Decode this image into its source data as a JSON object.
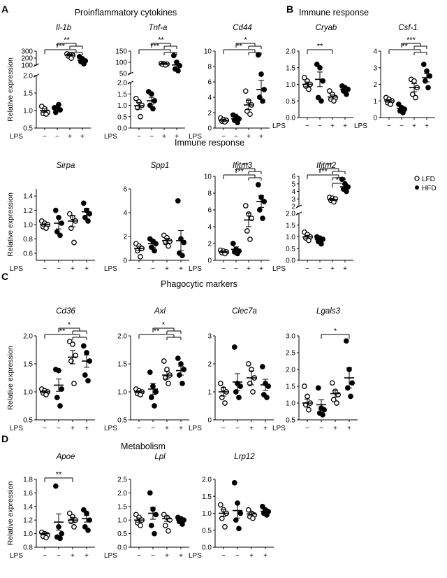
{
  "figure": {
    "panels": [
      {
        "letter": "A",
        "title": "Proinflammatory cytokines"
      },
      {
        "letter": "B",
        "title": "Immune response"
      },
      {
        "letter": "",
        "title": "Immune response"
      },
      {
        "letter": "C",
        "title": "Phagocytic markers"
      },
      {
        "letter": "D",
        "title": "Metabolism"
      }
    ],
    "ylabel": "Relative expression",
    "lps_label": "LPS",
    "lps_ticks": [
      "−",
      "−",
      "+",
      "+"
    ],
    "legend": [
      {
        "label": "LFD",
        "marker": "open-circle"
      },
      {
        "label": "HFD",
        "marker": "filled-circle"
      }
    ],
    "colors": {
      "ink": "#000000",
      "background": "#ffffff"
    }
  },
  "chart_data": [
    {
      "type": "scatter",
      "gene": "Il-1b",
      "groups": [
        "LFD",
        "HFD",
        "LFD + LPS",
        "HFD + LPS"
      ],
      "broken_axis": true,
      "ylim_lower": [
        0.5,
        2.0
      ],
      "ylim_upper": [
        100,
        300
      ],
      "yticks_lower": [
        0.5,
        1.0,
        1.5,
        2.0
      ],
      "yticks_upper": [
        100,
        200,
        300
      ],
      "values": [
        [
          1.12,
          1.05,
          0.95,
          0.92,
          0.9
        ],
        [
          1.08,
          1.1,
          1.02,
          0.95,
          1.17
        ],
        [
          260,
          252,
          240,
          230,
          198
        ],
        [
          220,
          190,
          160,
          148,
          118
        ]
      ],
      "means": [
        1.0,
        1.05,
        242,
        168
      ],
      "sem": [
        0.05,
        0.05,
        13,
        20
      ],
      "significance": [
        {
          "from": 0,
          "to": [
            2,
            3
          ],
          "label": "***"
        },
        {
          "from": 1,
          "to": [
            2,
            3
          ],
          "label": "**"
        }
      ]
    },
    {
      "type": "scatter",
      "gene": "Tnf-a",
      "groups": [
        "LFD",
        "HFD",
        "LFD + LPS",
        "HFD + LPS"
      ],
      "broken_axis": true,
      "ylim_lower": [
        0,
        2.0
      ],
      "ylim_upper": [
        50,
        150
      ],
      "yticks_lower": [
        0,
        0.5,
        1.0,
        1.5,
        2.0
      ],
      "yticks_upper": [
        50,
        100,
        150
      ],
      "values": [
        [
          1.3,
          1.15,
          1.0,
          0.9,
          0.5
        ],
        [
          1.6,
          1.5,
          1.2,
          1.0,
          0.85
        ],
        [
          95,
          93,
          92,
          90,
          88
        ],
        [
          130,
          100,
          85,
          70,
          62
        ]
      ],
      "means": [
        0.98,
        1.2,
        93,
        88
      ],
      "sem": [
        0.15,
        0.15,
        3,
        15
      ],
      "significance": [
        {
          "from": 0,
          "to": [
            2,
            3
          ],
          "label": "***"
        },
        {
          "from": 1,
          "to": [
            2,
            3
          ],
          "label": "**"
        }
      ]
    },
    {
      "type": "scatter",
      "gene": "Cd44",
      "groups": [
        "LFD",
        "HFD",
        "LFD + LPS",
        "HFD + LPS"
      ],
      "ylim": [
        0,
        10
      ],
      "yticks": [
        0,
        2,
        4,
        6,
        8,
        10
      ],
      "values": [
        [
          1.3,
          1.1,
          1.0,
          0.9,
          0.8
        ],
        [
          1.7,
          1.5,
          1.2,
          1.0,
          0.7
        ],
        [
          4.8,
          3.5,
          3.0,
          2.2,
          1.8
        ],
        [
          9.5,
          7.0,
          5.0,
          4.0,
          3.5
        ]
      ],
      "means": [
        1.0,
        1.2,
        3.0,
        5.0
      ],
      "sem": [
        0.15,
        0.3,
        0.6,
        1.2
      ],
      "significance": [
        {
          "from": 0,
          "to": [
            2,
            3
          ],
          "label": "**"
        },
        {
          "from": 1,
          "to": [
            2,
            3
          ],
          "label": "*"
        }
      ]
    },
    {
      "type": "scatter",
      "gene": "Cryab",
      "groups": [
        "LFD",
        "HFD",
        "LFD + LPS",
        "HFD + LPS"
      ],
      "ylim": [
        0,
        2.0
      ],
      "yticks": [
        0,
        0.5,
        1.0,
        1.5,
        2.0
      ],
      "values": [
        [
          1.2,
          1.1,
          1.0,
          0.95,
          0.85
        ],
        [
          1.6,
          1.5,
          1.1,
          0.6,
          0.5
        ],
        [
          0.8,
          0.7,
          0.6,
          0.55,
          0.5
        ],
        [
          0.95,
          0.9,
          0.85,
          0.8,
          0.7
        ]
      ],
      "means": [
        1.0,
        1.15,
        0.62,
        0.85
      ],
      "sem": [
        0.07,
        0.22,
        0.06,
        0.07
      ],
      "significance": [
        {
          "from": 0,
          "to": [
            2
          ],
          "label": "**"
        }
      ]
    },
    {
      "type": "scatter",
      "gene": "Csf-1",
      "groups": [
        "LFD",
        "HFD",
        "LFD + LPS",
        "HFD + LPS"
      ],
      "ylim": [
        0,
        4
      ],
      "yticks": [
        0,
        1,
        2,
        3,
        4
      ],
      "values": [
        [
          1.2,
          1.1,
          1.0,
          0.9,
          0.8
        ],
        [
          0.8,
          0.6,
          0.5,
          0.4,
          0.3
        ],
        [
          2.3,
          2.2,
          1.8,
          1.4,
          1.2
        ],
        [
          3.2,
          2.8,
          2.5,
          2.2,
          1.8
        ]
      ],
      "means": [
        1.0,
        0.55,
        1.8,
        2.4
      ],
      "sem": [
        0.08,
        0.1,
        0.25,
        0.25
      ],
      "significance": [
        {
          "from": 0,
          "to": [
            2,
            3
          ],
          "label": "**"
        },
        {
          "from": 1,
          "to": [
            2,
            3
          ],
          "label": "***"
        }
      ]
    },
    {
      "type": "scatter",
      "gene": "Sirpa",
      "groups": [
        "LFD",
        "HFD",
        "LFD + LPS",
        "HFD + LPS"
      ],
      "ylim": [
        0.5,
        1.5
      ],
      "yticks": [
        0.6,
        0.8,
        1.0,
        1.2,
        1.4
      ],
      "values": [
        [
          1.05,
          1.02,
          1.0,
          0.97,
          0.95
        ],
        [
          1.2,
          1.1,
          1.02,
          0.9,
          0.85
        ],
        [
          1.15,
          1.1,
          1.05,
          0.95,
          0.75
        ],
        [
          1.3,
          1.2,
          1.15,
          1.1,
          1.05
        ]
      ],
      "means": [
        1.0,
        1.02,
        1.05,
        1.18
      ],
      "sem": [
        0.02,
        0.08,
        0.08,
        0.05
      ],
      "significance": []
    },
    {
      "type": "scatter",
      "gene": "Spp1",
      "groups": [
        "LFD",
        "HFD",
        "LFD + LPS",
        "HFD + LPS"
      ],
      "ylim": [
        0,
        6
      ],
      "yticks": [
        0,
        2,
        4,
        6
      ],
      "values": [
        [
          1.4,
          1.2,
          1.0,
          0.8,
          0.3
        ],
        [
          1.8,
          1.6,
          1.4,
          1.1,
          0.8
        ],
        [
          2.1,
          1.9,
          1.6,
          1.5,
          1.2
        ],
        [
          5.0,
          1.8,
          1.5,
          0.6,
          0.4
        ]
      ],
      "means": [
        1.0,
        1.4,
        1.65,
        1.65
      ],
      "sem": [
        0.2,
        0.3,
        0.2,
        0.85
      ],
      "significance": []
    },
    {
      "type": "scatter",
      "gene": "Ifitm3",
      "groups": [
        "LFD",
        "HFD",
        "LFD + LPS",
        "HFD + LPS"
      ],
      "ylim": [
        0,
        10
      ],
      "yticks": [
        0,
        2,
        4,
        6,
        8,
        10
      ],
      "values": [
        [
          1.2,
          1.1,
          1.0,
          0.9,
          0.8
        ],
        [
          2.0,
          1.3,
          1.1,
          1.0,
          0.8
        ],
        [
          6.5,
          5.5,
          5.0,
          3.5,
          2.5
        ],
        [
          9.0,
          7.5,
          7.0,
          6.0,
          5.0
        ]
      ],
      "means": [
        1.0,
        1.3,
        4.8,
        7.0
      ],
      "sem": [
        0.1,
        0.3,
        0.8,
        0.7
      ],
      "significance": [
        {
          "from": 0,
          "to": [
            2,
            3
          ],
          "label": "***"
        },
        {
          "from": 1,
          "to": [
            2,
            3
          ],
          "label": "**"
        }
      ]
    },
    {
      "type": "scatter",
      "gene": "Ifitm2",
      "groups": [
        "LFD",
        "HFD",
        "LFD + LPS",
        "HFD + LPS"
      ],
      "broken_axis": true,
      "ylim_lower": [
        0,
        2.0
      ],
      "ylim_upper": [
        2,
        6
      ],
      "yticks_lower": [
        0,
        0.5,
        1.0,
        1.5,
        2.0
      ],
      "yticks_upper": [
        2,
        3,
        4,
        5,
        6
      ],
      "values": [
        [
          1.2,
          1.1,
          1.0,
          0.95,
          0.85
        ],
        [
          1.0,
          0.95,
          0.9,
          0.8,
          0.7
        ],
        [
          3.2,
          3.1,
          3.0,
          2.8,
          2.6
        ],
        [
          5.6,
          5.0,
          4.6,
          4.3,
          4.0
        ]
      ],
      "means": [
        1.0,
        0.88,
        2.9,
        4.6
      ],
      "sem": [
        0.07,
        0.06,
        0.12,
        0.3
      ],
      "significance": [
        {
          "from": 0,
          "to": [
            2,
            3
          ],
          "label": "***"
        },
        {
          "from": 1,
          "to": [
            2,
            3
          ],
          "label": "**"
        },
        {
          "from": 2,
          "to": [
            3
          ],
          "label": "**"
        }
      ]
    },
    {
      "type": "scatter",
      "gene": "Cd36",
      "groups": [
        "LFD",
        "HFD",
        "LFD + LPS",
        "HFD + LPS"
      ],
      "ylim": [
        0.5,
        2.0
      ],
      "yticks": [
        0.5,
        1.0,
        1.5,
        2.0
      ],
      "values": [
        [
          1.05,
          1.02,
          1.0,
          0.98,
          0.95
        ],
        [
          1.4,
          1.38,
          1.05,
          0.9,
          0.75
        ],
        [
          1.9,
          1.85,
          1.65,
          1.55,
          1.15
        ],
        [
          1.82,
          1.7,
          1.55,
          1.3,
          1.2
        ]
      ],
      "means": [
        1.0,
        1.12,
        1.62,
        1.55
      ],
      "sem": [
        0.02,
        0.11,
        0.12,
        0.11
      ],
      "significance": [
        {
          "from": 0,
          "to": [
            2,
            3
          ],
          "label": "**"
        },
        {
          "from": 1,
          "to": [
            2,
            3
          ],
          "label": "*"
        }
      ]
    },
    {
      "type": "scatter",
      "gene": "Axl",
      "groups": [
        "LFD",
        "HFD",
        "LFD + LPS",
        "HFD + LPS"
      ],
      "ylim": [
        0.5,
        2.0
      ],
      "yticks": [
        0.5,
        1.0,
        1.5,
        2.0
      ],
      "values": [
        [
          1.05,
          1.02,
          1.0,
          0.97,
          0.95
        ],
        [
          1.35,
          1.1,
          1.0,
          0.9,
          0.75
        ],
        [
          1.55,
          1.4,
          1.3,
          1.25,
          1.15
        ],
        [
          1.6,
          1.5,
          1.4,
          1.3,
          1.15
        ]
      ],
      "means": [
        1.0,
        1.05,
        1.3,
        1.38
      ],
      "sem": [
        0.02,
        0.1,
        0.07,
        0.08
      ],
      "significance": [
        {
          "from": 0,
          "to": [
            2,
            3
          ],
          "label": "**"
        },
        {
          "from": 1,
          "to": [
            2,
            3
          ],
          "label": "*"
        }
      ]
    },
    {
      "type": "scatter",
      "gene": "Clec7a",
      "groups": [
        "LFD",
        "HFD",
        "LFD + LPS",
        "HFD + LPS"
      ],
      "ylim": [
        0,
        3
      ],
      "yticks": [
        0,
        1,
        2,
        3
      ],
      "values": [
        [
          1.3,
          1.1,
          1.0,
          0.8,
          0.6
        ],
        [
          2.6,
          1.3,
          1.2,
          1.0,
          0.8
        ],
        [
          2.0,
          1.8,
          1.5,
          1.3,
          1.0
        ],
        [
          1.9,
          1.3,
          1.2,
          0.9,
          0.8
        ]
      ],
      "means": [
        1.0,
        1.35,
        1.5,
        1.25
      ],
      "sem": [
        0.15,
        0.3,
        0.25,
        0.2
      ],
      "significance": []
    },
    {
      "type": "scatter",
      "gene": "Lgals3",
      "groups": [
        "LFD",
        "HFD",
        "LFD + LPS",
        "HFD + LPS"
      ],
      "ylim": [
        0.5,
        3.0
      ],
      "yticks": [
        0.5,
        1.0,
        1.5,
        2.0,
        2.5,
        3.0
      ],
      "values": [
        [
          1.5,
          1.2,
          1.0,
          0.95,
          0.8
        ],
        [
          1.45,
          0.85,
          0.8,
          0.7,
          0.65
        ],
        [
          1.6,
          1.35,
          1.25,
          1.1,
          1.0
        ],
        [
          2.85,
          2.0,
          1.6,
          1.45,
          1.2
        ]
      ],
      "means": [
        1.0,
        0.95,
        1.28,
        1.75
      ],
      "sem": [
        0.12,
        0.15,
        0.1,
        0.3
      ],
      "significance": [
        {
          "from": 1,
          "to": [
            3
          ],
          "label": "*"
        }
      ]
    },
    {
      "type": "scatter",
      "gene": "Apoe",
      "groups": [
        "LFD",
        "HFD",
        "LFD + LPS",
        "HFD + LPS"
      ],
      "ylim": [
        0.8,
        1.8
      ],
      "yticks": [
        0.8,
        1.0,
        1.2,
        1.4,
        1.6,
        1.8
      ],
      "values": [
        [
          1.02,
          1.0,
          0.98,
          0.96,
          0.94
        ],
        [
          1.7,
          1.1,
          1.0,
          0.95,
          0.93
        ],
        [
          1.3,
          1.25,
          1.2,
          1.18,
          1.1
        ],
        [
          1.35,
          1.3,
          1.2,
          1.1,
          1.05
        ]
      ],
      "means": [
        1.0,
        1.17,
        1.2,
        1.22
      ],
      "sem": [
        0.02,
        0.12,
        0.04,
        0.05
      ],
      "significance": [
        {
          "from": 0,
          "to": [
            2
          ],
          "label": "**"
        }
      ]
    },
    {
      "type": "scatter",
      "gene": "Lpl",
      "groups": [
        "LFD",
        "HFD",
        "LFD + LPS",
        "HFD + LPS"
      ],
      "ylim": [
        0,
        2.5
      ],
      "yticks": [
        0,
        0.5,
        1.0,
        1.5,
        2.0,
        2.5
      ],
      "values": [
        [
          1.2,
          1.1,
          1.0,
          0.9,
          0.8
        ],
        [
          2.0,
          1.4,
          1.2,
          0.8,
          0.5
        ],
        [
          1.2,
          1.1,
          1.0,
          0.8,
          0.6
        ],
        [
          1.1,
          1.05,
          1.0,
          0.95,
          0.85
        ]
      ],
      "means": [
        1.0,
        1.25,
        1.05,
        1.0
      ],
      "sem": [
        0.08,
        0.22,
        0.1,
        0.05
      ],
      "significance": []
    },
    {
      "type": "scatter",
      "gene": "Lrp12",
      "groups": [
        "LFD",
        "HFD",
        "LFD + LPS",
        "HFD + LPS"
      ],
      "ylim": [
        0,
        2.0
      ],
      "yticks": [
        0,
        0.5,
        1.0,
        1.5,
        2.0
      ],
      "values": [
        [
          1.25,
          1.1,
          1.0,
          0.85,
          0.6
        ],
        [
          1.9,
          1.3,
          1.0,
          0.8,
          0.55
        ],
        [
          1.1,
          1.0,
          0.95,
          0.9,
          0.85
        ],
        [
          1.2,
          1.1,
          1.05,
          1.0,
          0.95
        ]
      ],
      "means": [
        1.0,
        1.08,
        0.98,
        1.06
      ],
      "sem": [
        0.1,
        0.22,
        0.05,
        0.05
      ],
      "significance": []
    }
  ]
}
